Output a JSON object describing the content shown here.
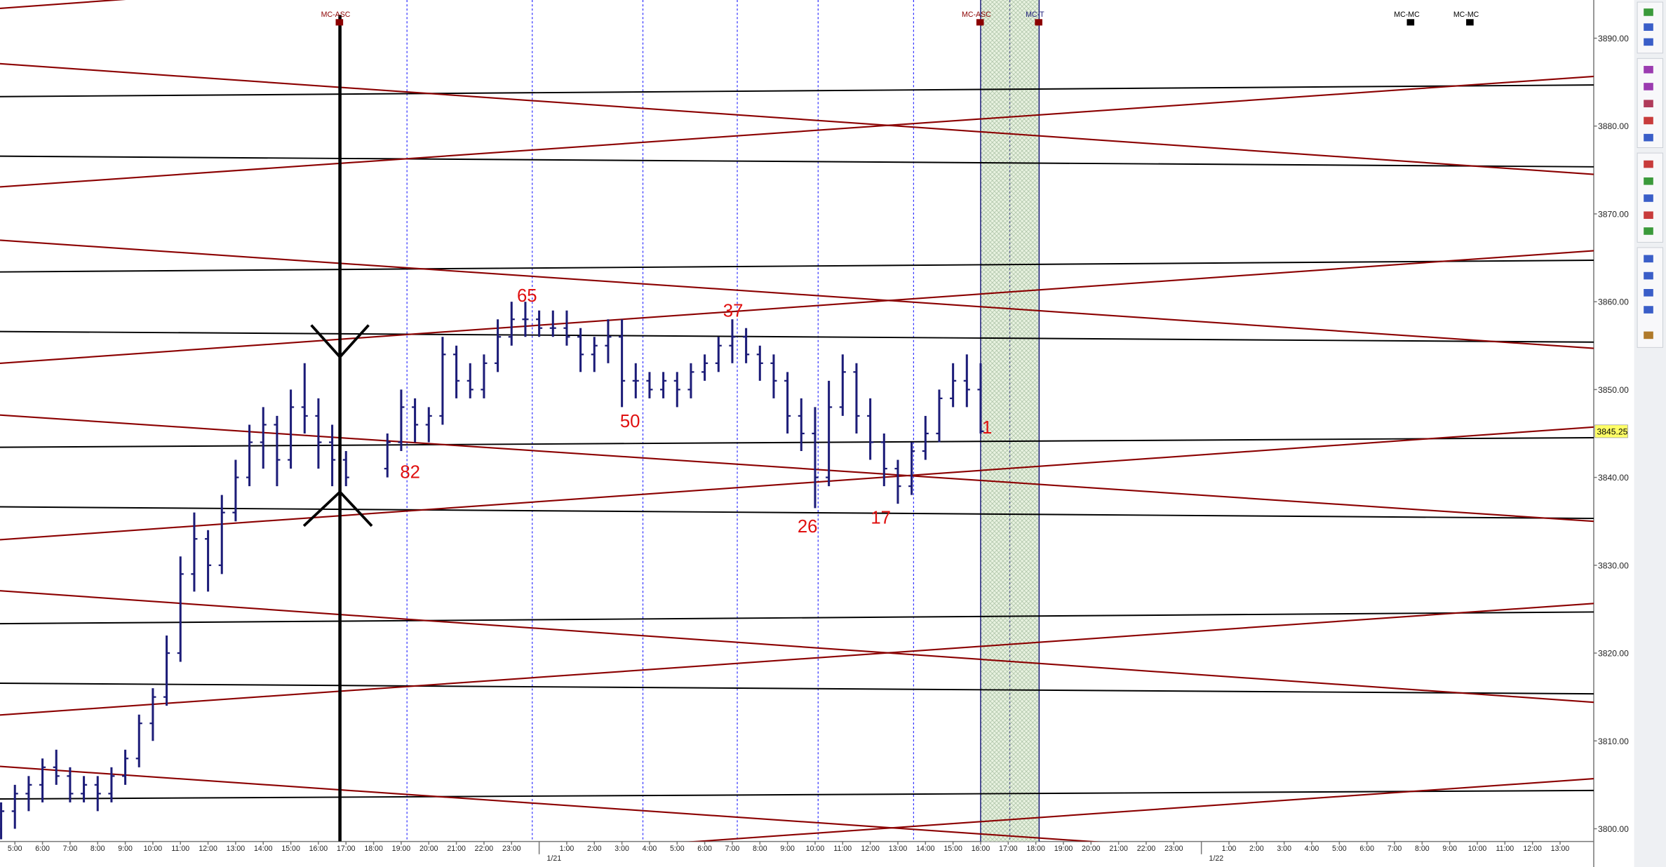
{
  "chart_data": {
    "type": "ohlc",
    "x": [
      4.5,
      5,
      5.5,
      6,
      6.5,
      7,
      7.5,
      8,
      8.5,
      9,
      9.5,
      10,
      10.5,
      11,
      11.5,
      12,
      12.5,
      13,
      13.5,
      14,
      14.5,
      15,
      15.5,
      16,
      16.5,
      17,
      18.5,
      19,
      19.5,
      20,
      20.5,
      21,
      21.5,
      22,
      22.5,
      23,
      23.5,
      24,
      24.5,
      25,
      25.5,
      26,
      26.5,
      27,
      27.5,
      28,
      28.5,
      29,
      29.5,
      30,
      30.5,
      31,
      31.5,
      32,
      32.5,
      33,
      33.5,
      34,
      34.5,
      35,
      35.5,
      36,
      36.5,
      37,
      37.5,
      38,
      38.5,
      39,
      39.5,
      40
    ],
    "open": [
      3800,
      3802,
      3804,
      3805,
      3807,
      3806,
      3804,
      3805,
      3804,
      3806,
      3808,
      3812,
      3815,
      3820,
      3829,
      3833,
      3830,
      3836,
      3840,
      3844,
      3846,
      3842,
      3848,
      3847,
      3844,
      3842,
      3841,
      3844,
      3848,
      3846,
      3847,
      3854,
      3851,
      3850,
      3853,
      3856,
      3858,
      3858,
      3857,
      3857,
      3856,
      3854,
      3855,
      3856,
      3851,
      3851,
      3850,
      3851,
      3850,
      3852,
      3853,
      3855,
      3856,
      3854,
      3853,
      3851,
      3847,
      3845,
      3840,
      3848,
      3852,
      3847,
      3844,
      3841,
      3839,
      3843,
      3845,
      3849,
      3851,
      3850
    ],
    "high": [
      3803,
      3805,
      3806,
      3808,
      3809,
      3807,
      3806,
      3806,
      3807,
      3809,
      3813,
      3816,
      3822,
      3831,
      3836,
      3834,
      3838,
      3842,
      3846,
      3848,
      3847,
      3850,
      3853,
      3849,
      3846,
      3843,
      3845,
      3850,
      3849,
      3848,
      3856,
      3855,
      3853,
      3854,
      3858,
      3860,
      3860,
      3859,
      3859,
      3859,
      3857,
      3856,
      3858,
      3858,
      3853,
      3852,
      3852,
      3852,
      3853,
      3854,
      3856,
      3858,
      3857,
      3855,
      3854,
      3852,
      3849,
      3848,
      3851,
      3854,
      3853,
      3849,
      3845,
      3842,
      3844,
      3847,
      3850,
      3853,
      3854,
      3853
    ],
    "low": [
      3798.8,
      3800,
      3802,
      3803,
      3805,
      3803,
      3803,
      3802,
      3803,
      3805,
      3807,
      3810,
      3814,
      3819,
      3827,
      3827,
      3829,
      3835,
      3839,
      3841,
      3839,
      3841,
      3845,
      3841,
      3839,
      3839,
      3840,
      3843,
      3844,
      3844,
      3846,
      3849,
      3849,
      3849,
      3852,
      3855,
      3856,
      3856,
      3856,
      3855,
      3852,
      3852,
      3853,
      3848,
      3849,
      3849,
      3849,
      3848,
      3849,
      3851,
      3852,
      3853,
      3853,
      3851,
      3849,
      3845,
      3843,
      3836.5,
      3839,
      3847,
      3845,
      3842,
      3839,
      3837,
      3838,
      3842,
      3844,
      3848,
      3848,
      3845
    ],
    "close": [
      3802,
      3804,
      3805,
      3807,
      3806,
      3804,
      3805,
      3804,
      3806,
      3808,
      3812,
      3815,
      3820,
      3829,
      3833,
      3830,
      3836,
      3840,
      3844,
      3846,
      3842,
      3848,
      3847,
      3844,
      3842,
      3840,
      3844,
      3848,
      3846,
      3847,
      3854,
      3851,
      3850,
      3853,
      3856,
      3858,
      3858,
      3857,
      3857,
      3856,
      3854,
      3855,
      3856,
      3851,
      3851,
      3850,
      3851,
      3850,
      3852,
      3853,
      3855,
      3856,
      3854,
      3853,
      3851,
      3847,
      3845,
      3840,
      3848,
      3852,
      3847,
      3844,
      3841,
      3839,
      3843,
      3845,
      3849,
      3851,
      3850,
      3845.25
    ],
    "color": "#1c1c78",
    "xlim": [
      4.46,
      62.22
    ],
    "ylim": [
      3798.55,
      3894.35
    ],
    "yticks": [
      {
        "value": 3800,
        "label": "3800.00"
      },
      {
        "value": 3810,
        "label": "3810.00"
      },
      {
        "value": 3820,
        "label": "3820.00"
      },
      {
        "value": 3830,
        "label": "3830.00"
      },
      {
        "value": 3840,
        "label": "3840.00"
      },
      {
        "value": 3850,
        "label": "3850.00"
      },
      {
        "value": 3860,
        "label": "3860.00"
      },
      {
        "value": 3870,
        "label": "3870.00"
      },
      {
        "value": 3880,
        "label": "3880.00"
      },
      {
        "value": 3890,
        "label": "3890.00"
      }
    ],
    "xticks": [
      {
        "value": 5,
        "label": "5:00"
      },
      {
        "value": 6,
        "label": "6:00"
      },
      {
        "value": 7,
        "label": "7:00"
      },
      {
        "value": 8,
        "label": "8:00"
      },
      {
        "value": 9,
        "label": "9:00"
      },
      {
        "value": 10,
        "label": "10:00"
      },
      {
        "value": 11,
        "label": "11:00"
      },
      {
        "value": 12,
        "label": "12:00"
      },
      {
        "value": 13,
        "label": "13:00"
      },
      {
        "value": 14,
        "label": "14:00"
      },
      {
        "value": 15,
        "label": "15:00"
      },
      {
        "value": 16,
        "label": "16:00"
      },
      {
        "value": 17,
        "label": "17:00"
      },
      {
        "value": 18,
        "label": "18:00"
      },
      {
        "value": 19,
        "label": "19:00"
      },
      {
        "value": 20,
        "label": "20:00"
      },
      {
        "value": 21,
        "label": "21:00"
      },
      {
        "value": 22,
        "label": "22:00"
      },
      {
        "value": 23,
        "label": "23:00"
      },
      {
        "value": 25,
        "label": "1:00"
      },
      {
        "value": 26,
        "label": "2:00"
      },
      {
        "value": 27,
        "label": "3:00"
      },
      {
        "value": 28,
        "label": "4:00"
      },
      {
        "value": 29,
        "label": "5:00"
      },
      {
        "value": 30,
        "label": "6:00"
      },
      {
        "value": 31,
        "label": "7:00"
      },
      {
        "value": 32,
        "label": "8:00"
      },
      {
        "value": 33,
        "label": "9:00"
      },
      {
        "value": 34,
        "label": "10:00"
      },
      {
        "value": 35,
        "label": "11:00"
      },
      {
        "value": 36,
        "label": "12:00"
      },
      {
        "value": 37,
        "label": "13:00"
      },
      {
        "value": 38,
        "label": "14:00"
      },
      {
        "value": 39,
        "label": "15:00"
      },
      {
        "value": 40,
        "label": "16:00"
      },
      {
        "value": 41,
        "label": "17:00"
      },
      {
        "value": 42,
        "label": "18:00"
      },
      {
        "value": 43,
        "label": "19:00"
      },
      {
        "value": 44,
        "label": "20:00"
      },
      {
        "value": 45,
        "label": "21:00"
      },
      {
        "value": 46,
        "label": "22:00"
      },
      {
        "value": 47,
        "label": "23:00"
      },
      {
        "value": 49,
        "label": "1:00"
      },
      {
        "value": 50,
        "label": "2:00"
      },
      {
        "value": 51,
        "label": "3:00"
      },
      {
        "value": 52,
        "label": "4:00"
      },
      {
        "value": 53,
        "label": "5:00"
      },
      {
        "value": 54,
        "label": "6:00"
      },
      {
        "value": 55,
        "label": "7:00"
      },
      {
        "value": 56,
        "label": "8:00"
      },
      {
        "value": 57,
        "label": "9:00"
      },
      {
        "value": 58,
        "label": "10:00"
      },
      {
        "value": 59,
        "label": "11:00"
      },
      {
        "value": 60,
        "label": "12:00"
      },
      {
        "value": 61,
        "label": "13:00"
      }
    ],
    "xdate_ticks": [
      {
        "value": 24,
        "label": "1/21"
      },
      {
        "value": 48,
        "label": "1/22"
      }
    ],
    "last_price": {
      "value": 3845.25,
      "label": "3845.25"
    },
    "black_levels": [
      [
        3883.35,
        3884.68
      ],
      [
        3876.57,
        3875.36
      ],
      [
        3863.39,
        3864.72
      ],
      [
        3856.61,
        3855.4
      ],
      [
        3843.43,
        3844.52
      ],
      [
        3836.65,
        3835.33
      ],
      [
        3823.35,
        3824.68
      ],
      [
        3816.57,
        3815.36
      ],
      [
        3803.39,
        3804.36
      ]
    ],
    "red_lines": [
      [
        3887.1,
        3874.5
      ],
      [
        3867.0,
        3854.7
      ],
      [
        3847.1,
        3835.0
      ],
      [
        3827.1,
        3814.4
      ],
      [
        3807.1,
        3794.6
      ],
      [
        3893.4,
        3906.5
      ],
      [
        3873.07,
        3885.65
      ],
      [
        3852.99,
        3865.81
      ],
      [
        3832.9,
        3845.73
      ],
      [
        3812.95,
        3825.65
      ],
      [
        3792.99,
        3805.7
      ]
    ],
    "time_lines": [
      19.21,
      23.75,
      27.76,
      31.18,
      34.11,
      37.57
    ],
    "arrow_x": 16.78,
    "shade": [
      40.0,
      42.12
    ],
    "markers": [
      {
        "label": "MC-ASC",
        "x": 16.78
      },
      {
        "label": "MC-ASC",
        "x": 40.0
      },
      {
        "label": "MC-T",
        "x": 42.12
      },
      {
        "label": "MC-MC",
        "x": 55.6
      },
      {
        "label": "MC-MC",
        "x": 57.75
      }
    ],
    "annotations": [
      "65",
      "37",
      "50",
      "82",
      "26",
      "17",
      "1"
    ]
  }
}
